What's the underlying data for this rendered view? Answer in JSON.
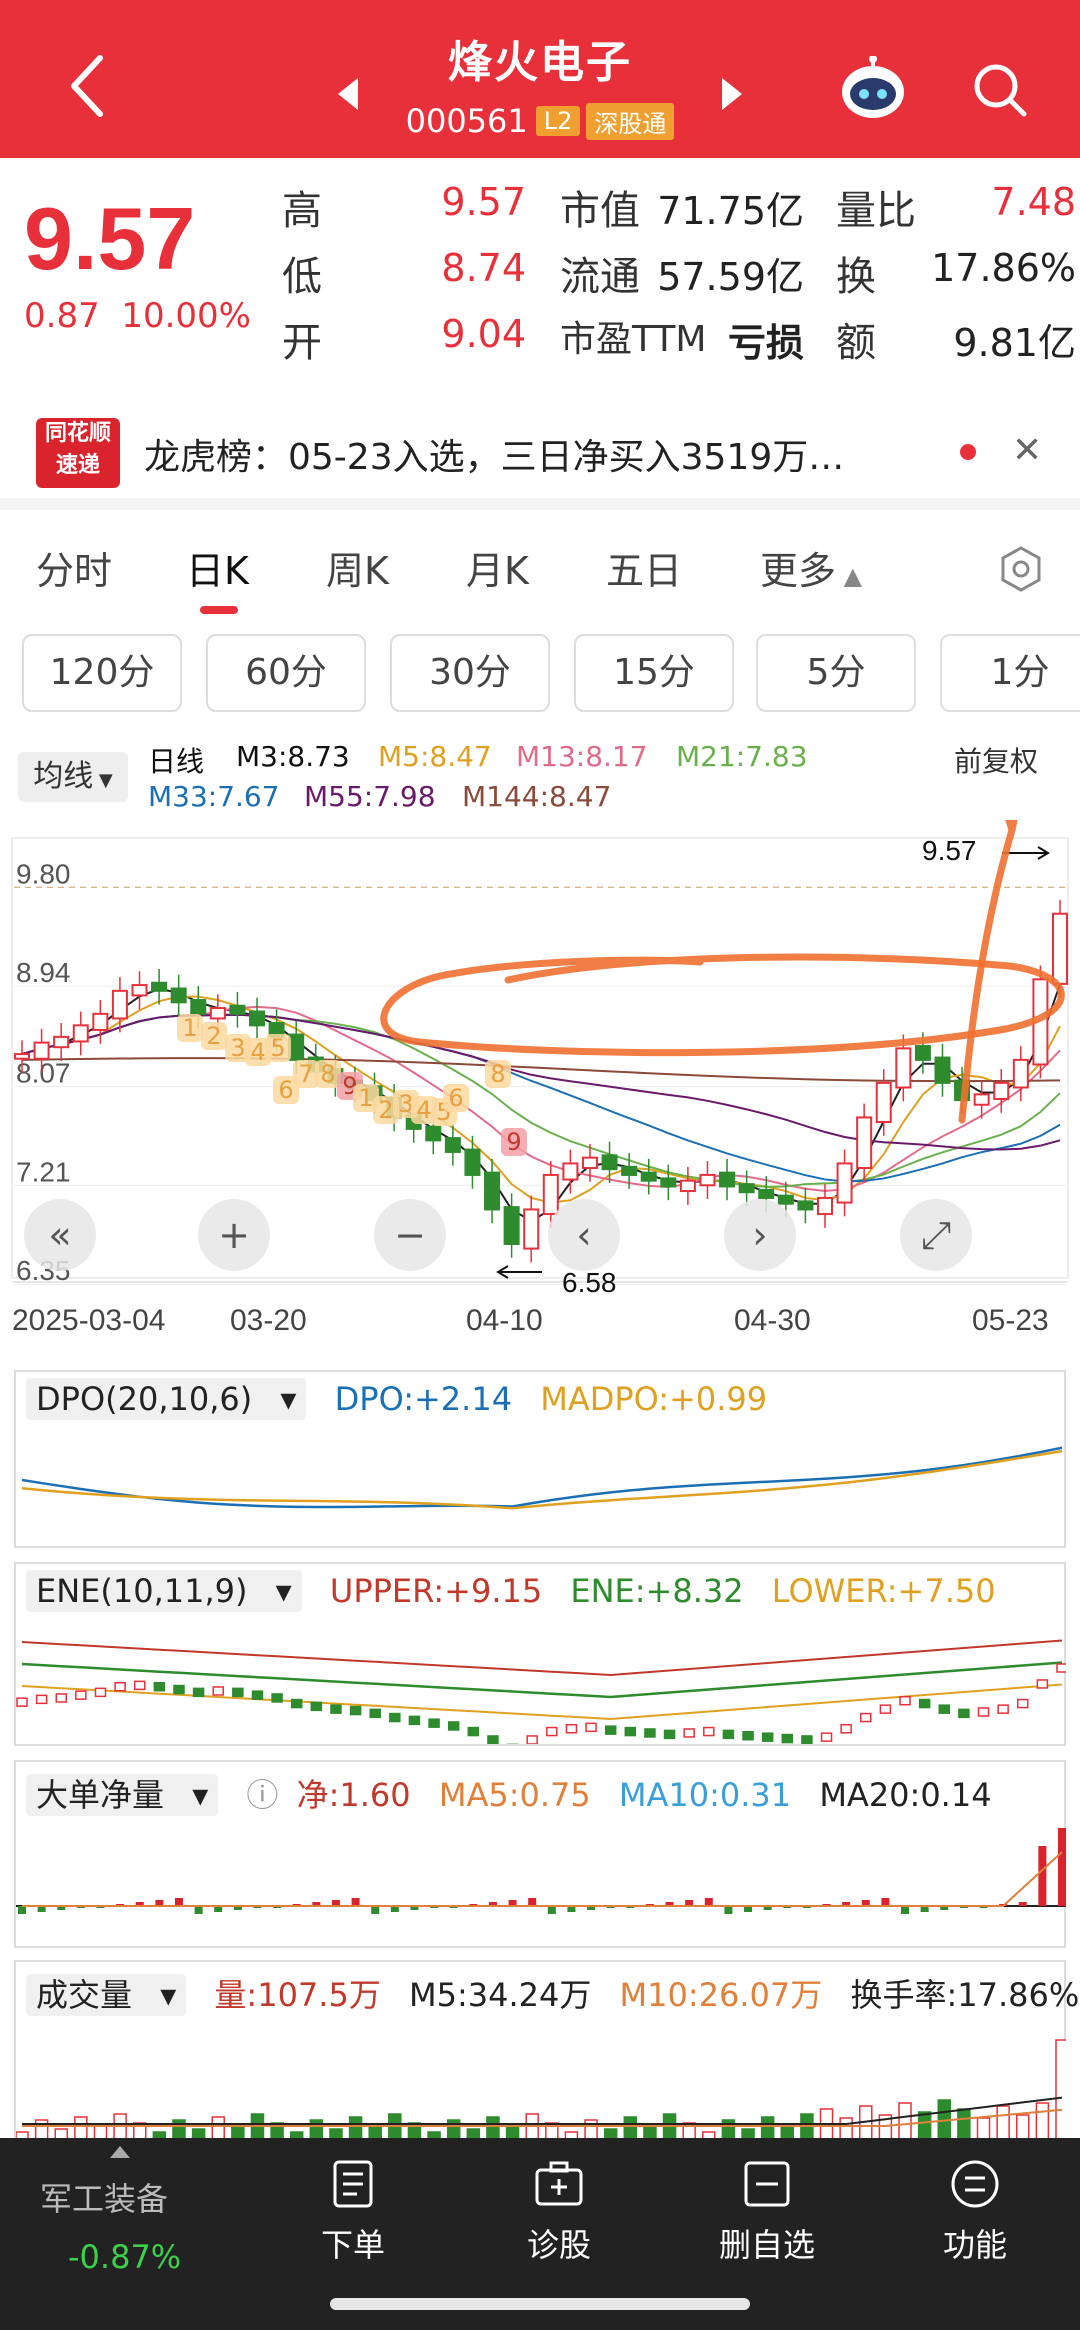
{
  "header": {
    "title": "烽火电子",
    "code": "000561",
    "tag_l2": "L2",
    "tag_market": "深股通"
  },
  "quote": {
    "price": "9.57",
    "change": "0.87",
    "change_pct": "10.00%",
    "high_label": "高",
    "high": "9.57",
    "low_label": "低",
    "low": "8.74",
    "open_label": "开",
    "open": "9.04",
    "mcap_label": "市值",
    "mcap": "71.75亿",
    "float_label": "流通",
    "float": "57.59亿",
    "pe_label": "市盈TTM",
    "pe": "亏损",
    "vr_label": "量比",
    "vr": "7.48",
    "turn_label": "换",
    "turn": "17.86%",
    "amt_label": "额",
    "amt": "9.81亿"
  },
  "news": {
    "logo_line1": "同花顺",
    "logo_line2": "速递",
    "text": "龙虎榜：05-23入选，三日净买入3519万…"
  },
  "tabs": [
    "分时",
    "日K",
    "周K",
    "月K",
    "五日",
    "更多"
  ],
  "subtabs": [
    "120分",
    "60分",
    "30分",
    "15分",
    "5分",
    "1分"
  ],
  "ma": {
    "btn": "均线",
    "period": "日线",
    "m3": "M3:8.73",
    "m5": "M5:8.47",
    "m13": "M13:8.17",
    "m21": "M21:7.83",
    "m33": "M33:7.67",
    "m55": "M55:7.98",
    "m144": "M144:8.47",
    "adj": "前复权"
  },
  "kline": {
    "y_ticks": [
      "9.80",
      "8.94",
      "8.07",
      "7.21",
      "6.35"
    ],
    "x_ticks": [
      "2025-03-04",
      "03-20",
      "04-10",
      "04-30",
      "05-23"
    ],
    "high_mark": "9.57",
    "low_mark": "6.58"
  },
  "indicators": {
    "dpo": {
      "name": "DPO(20,10,6)",
      "dpo": "DPO:+2.14",
      "madpo": "MADPO:+0.99"
    },
    "ene": {
      "name": "ENE(10,11,9)",
      "upper": "UPPER:+9.15",
      "ene": "ENE:+8.32",
      "lower": "LOWER:+7.50"
    },
    "big": {
      "name": "大单净量",
      "net": "净:1.60",
      "ma5": "MA5:0.75",
      "ma10": "MA10:0.31",
      "ma20": "MA20:0.14"
    },
    "vol": {
      "name": "成交量",
      "vol": "量:107.5万",
      "m5": "M5:34.24万",
      "m10": "M10:26.07万",
      "turn": "换手率:17.86%"
    }
  },
  "bottom": {
    "sector": "军工装备",
    "sector_pct": "-0.87%",
    "items": [
      "下单",
      "诊股",
      "删自选",
      "功能"
    ]
  },
  "colors": {
    "red": "#e8303a",
    "green": "#2e8b2e",
    "gold": "#e0a020",
    "blue": "#1a6fb5"
  }
}
